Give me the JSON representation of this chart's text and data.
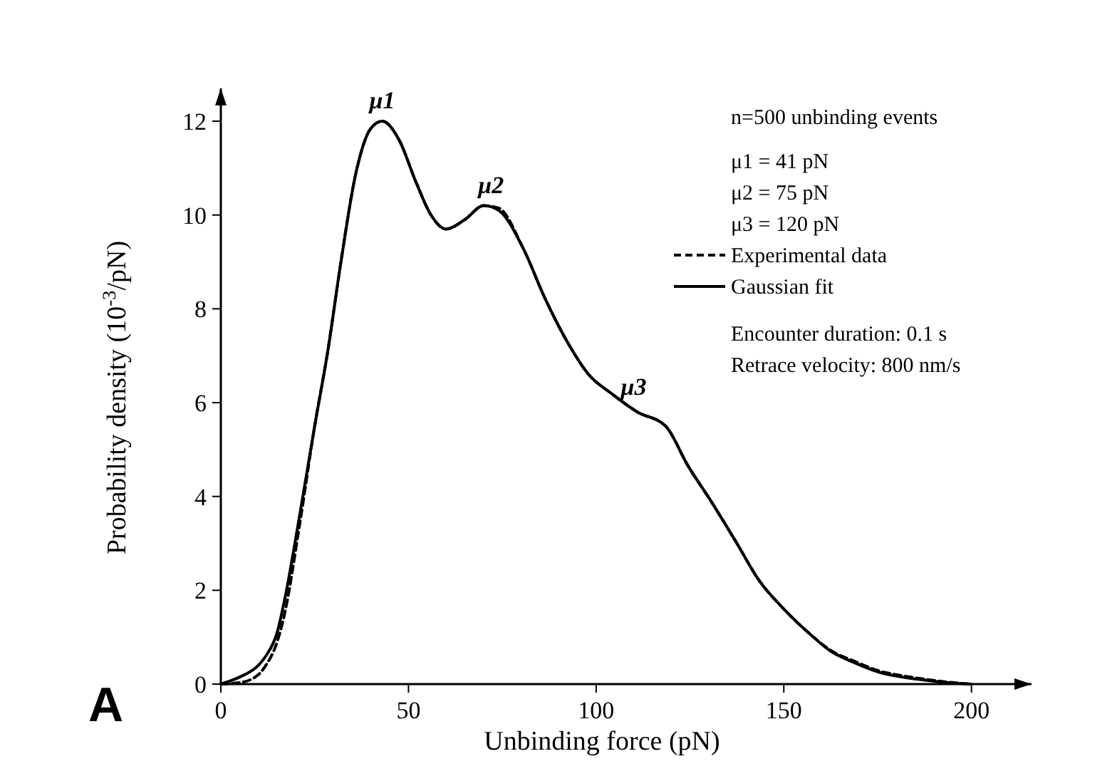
{
  "chart_data": {
    "type": "line",
    "xlabel": "Unbinding force (pN)",
    "ylabel": "Probability density (10$^{-3}$/pN)",
    "xlim": [
      0,
      216
    ],
    "ylim": [
      0,
      12.7
    ],
    "xticks": [
      0,
      50,
      100,
      150,
      200
    ],
    "yticks": [
      0,
      2,
      4,
      6,
      8,
      10,
      12
    ],
    "legend": "top right",
    "grid": false,
    "series": [
      {
        "name": "Experimental data",
        "color": "#000000",
        "line_style": "dashed",
        "x": [
          0,
          5,
          10,
          12,
          15,
          17,
          21,
          25,
          28.5,
          32,
          36,
          40,
          43,
          47.5,
          52,
          56,
          60,
          65,
          70,
          74,
          80.5,
          86.5,
          93,
          98,
          104,
          111,
          118.5,
          124.5,
          131,
          137.5,
          143.5,
          150,
          156.5,
          162.5,
          169,
          175.5,
          181.5,
          188,
          194,
          200
        ],
        "values": [
          0,
          0.03,
          0.2,
          0.4,
          0.9,
          1.5,
          3.4,
          5.5,
          7.1,
          9.0,
          10.9,
          11.85,
          12.0,
          11.6,
          10.7,
          10.0,
          9.7,
          9.9,
          10.2,
          10.15,
          9.3,
          8.2,
          7.2,
          6.6,
          6.2,
          5.8,
          5.5,
          4.65,
          3.85,
          3.0,
          2.2,
          1.6,
          1.1,
          0.72,
          0.48,
          0.28,
          0.18,
          0.1,
          0.04,
          0
        ]
      },
      {
        "name": "Gaussian fit",
        "color": "#000000",
        "line_style": "solid",
        "x": [
          0,
          5,
          10,
          12,
          15,
          17,
          21,
          25,
          28.5,
          32,
          36,
          40,
          43,
          47.5,
          52,
          56,
          60,
          65,
          70,
          74,
          80.5,
          86.5,
          93,
          98,
          104,
          111,
          118.5,
          124.5,
          131,
          137.5,
          143.5,
          150,
          156.5,
          162.5,
          169,
          175.5,
          181.5,
          188,
          194,
          200
        ],
        "values": [
          0,
          0.15,
          0.4,
          0.6,
          1.1,
          1.8,
          3.6,
          5.5,
          7.1,
          9.0,
          10.9,
          11.85,
          12.0,
          11.6,
          10.7,
          10.0,
          9.7,
          9.9,
          10.2,
          10.1,
          9.3,
          8.2,
          7.2,
          6.6,
          6.2,
          5.8,
          5.5,
          4.65,
          3.85,
          3.0,
          2.2,
          1.6,
          1.1,
          0.7,
          0.45,
          0.25,
          0.15,
          0.08,
          0.03,
          0
        ]
      }
    ],
    "annotations": [
      "n=500 unbinding events",
      "μ1 =   41 pN",
      "μ2 =   75 pN",
      "μ3 = 120 pN",
      "Encounter duration: 0.1 s",
      "Retrace velocity: 800 nm/s",
      {
        "text": "μ1",
        "x": 43,
        "y": 12.0
      },
      {
        "text": "μ2",
        "x": 72,
        "y": 10.2
      },
      {
        "text": "μ3",
        "x": 110,
        "y": 5.9
      },
      "A"
    ]
  }
}
